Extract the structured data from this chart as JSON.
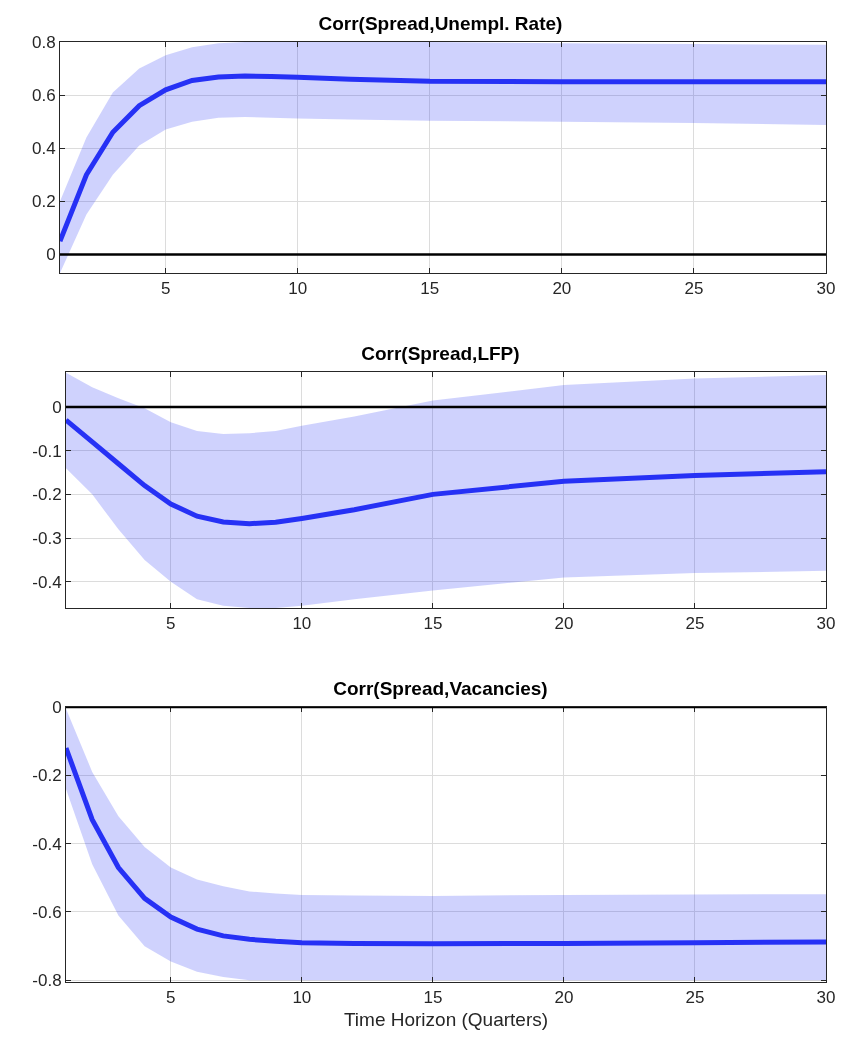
{
  "chart_data": [
    {
      "type": "line",
      "title": "Corr(Spread,Unempl. Rate)",
      "x": [
        1,
        2,
        3,
        4,
        5,
        6,
        7,
        8,
        9,
        10,
        12,
        15,
        20,
        25,
        30
      ],
      "series": [
        {
          "color": "#2631f5",
          "values": [
            0.05,
            0.3,
            0.46,
            0.56,
            0.62,
            0.655,
            0.668,
            0.672,
            0.67,
            0.667,
            0.66,
            0.652,
            0.65,
            0.65,
            0.65
          ],
          "lower": [
            -0.07,
            0.15,
            0.3,
            0.41,
            0.47,
            0.5,
            0.515,
            0.518,
            0.515,
            0.512,
            0.508,
            0.503,
            0.5,
            0.495,
            0.487
          ],
          "upper": [
            0.2,
            0.44,
            0.61,
            0.7,
            0.75,
            0.78,
            0.795,
            0.8,
            0.8,
            0.8,
            0.8,
            0.8,
            0.795,
            0.792,
            0.79
          ]
        }
      ],
      "xlim": [
        1,
        30
      ],
      "xticks": [
        5,
        10,
        15,
        20,
        25,
        30
      ],
      "ylim": [
        -0.07,
        0.8
      ],
      "yticks": [
        0,
        0.2,
        0.4,
        0.6,
        0.8
      ],
      "ref_lines": [
        {
          "axis": "y",
          "value": 0,
          "color": "#000000"
        }
      ],
      "grid": true,
      "line_style": "solid",
      "marker": "none"
    },
    {
      "type": "line",
      "title": "Corr(Spread,LFP)",
      "x": [
        1,
        2,
        3,
        4,
        5,
        6,
        7,
        8,
        9,
        10,
        12,
        15,
        20,
        25,
        30
      ],
      "series": [
        {
          "color": "#2631f5",
          "values": [
            -0.03,
            -0.08,
            -0.13,
            -0.18,
            -0.222,
            -0.25,
            -0.263,
            -0.267,
            -0.264,
            -0.255,
            -0.235,
            -0.2,
            -0.17,
            -0.157,
            -0.148
          ],
          "lower": [
            -0.14,
            -0.2,
            -0.28,
            -0.35,
            -0.4,
            -0.44,
            -0.455,
            -0.46,
            -0.46,
            -0.455,
            -0.44,
            -0.42,
            -0.39,
            -0.38,
            -0.375
          ],
          "upper": [
            0.078,
            0.045,
            0.02,
            -0.003,
            -0.035,
            -0.055,
            -0.062,
            -0.06,
            -0.055,
            -0.043,
            -0.022,
            0.015,
            0.05,
            0.065,
            0.073
          ]
        }
      ],
      "xlim": [
        1,
        30
      ],
      "xticks": [
        5,
        10,
        15,
        20,
        25,
        30
      ],
      "ylim": [
        -0.46,
        0.08
      ],
      "yticks": [
        -0.4,
        -0.3,
        -0.2,
        -0.1,
        0
      ],
      "ref_lines": [
        {
          "axis": "y",
          "value": 0,
          "color": "#000000"
        }
      ],
      "grid": true,
      "line_style": "solid",
      "marker": "none"
    },
    {
      "type": "line",
      "title": "Corr(Spread,Vacancies)",
      "xlabel": "Time Horizon (Quarters)",
      "x": [
        1,
        2,
        3,
        4,
        5,
        6,
        7,
        8,
        9,
        10,
        12,
        15,
        20,
        25,
        30
      ],
      "series": [
        {
          "color": "#2631f5",
          "values": [
            -0.12,
            -0.33,
            -0.47,
            -0.56,
            -0.615,
            -0.65,
            -0.67,
            -0.68,
            -0.686,
            -0.69,
            -0.692,
            -0.693,
            -0.692,
            -0.69,
            -0.688
          ],
          "lower": [
            -0.24,
            -0.46,
            -0.61,
            -0.7,
            -0.745,
            -0.775,
            -0.79,
            -0.8,
            -0.8,
            -0.8,
            -0.8,
            -0.8,
            -0.8,
            -0.8,
            -0.8
          ],
          "upper": [
            -0.005,
            -0.19,
            -0.32,
            -0.41,
            -0.47,
            -0.505,
            -0.525,
            -0.54,
            -0.546,
            -0.55,
            -0.552,
            -0.553,
            -0.55,
            -0.549,
            -0.548
          ]
        }
      ],
      "xlim": [
        1,
        30
      ],
      "xticks": [
        5,
        10,
        15,
        20,
        25,
        30
      ],
      "ylim": [
        -0.805,
        0
      ],
      "yticks": [
        -0.8,
        -0.6,
        -0.4,
        -0.2,
        0
      ],
      "ref_lines": [
        {
          "axis": "y",
          "value": 0,
          "color": "#000000"
        }
      ],
      "grid": true,
      "line_style": "solid",
      "marker": "none"
    }
  ]
}
